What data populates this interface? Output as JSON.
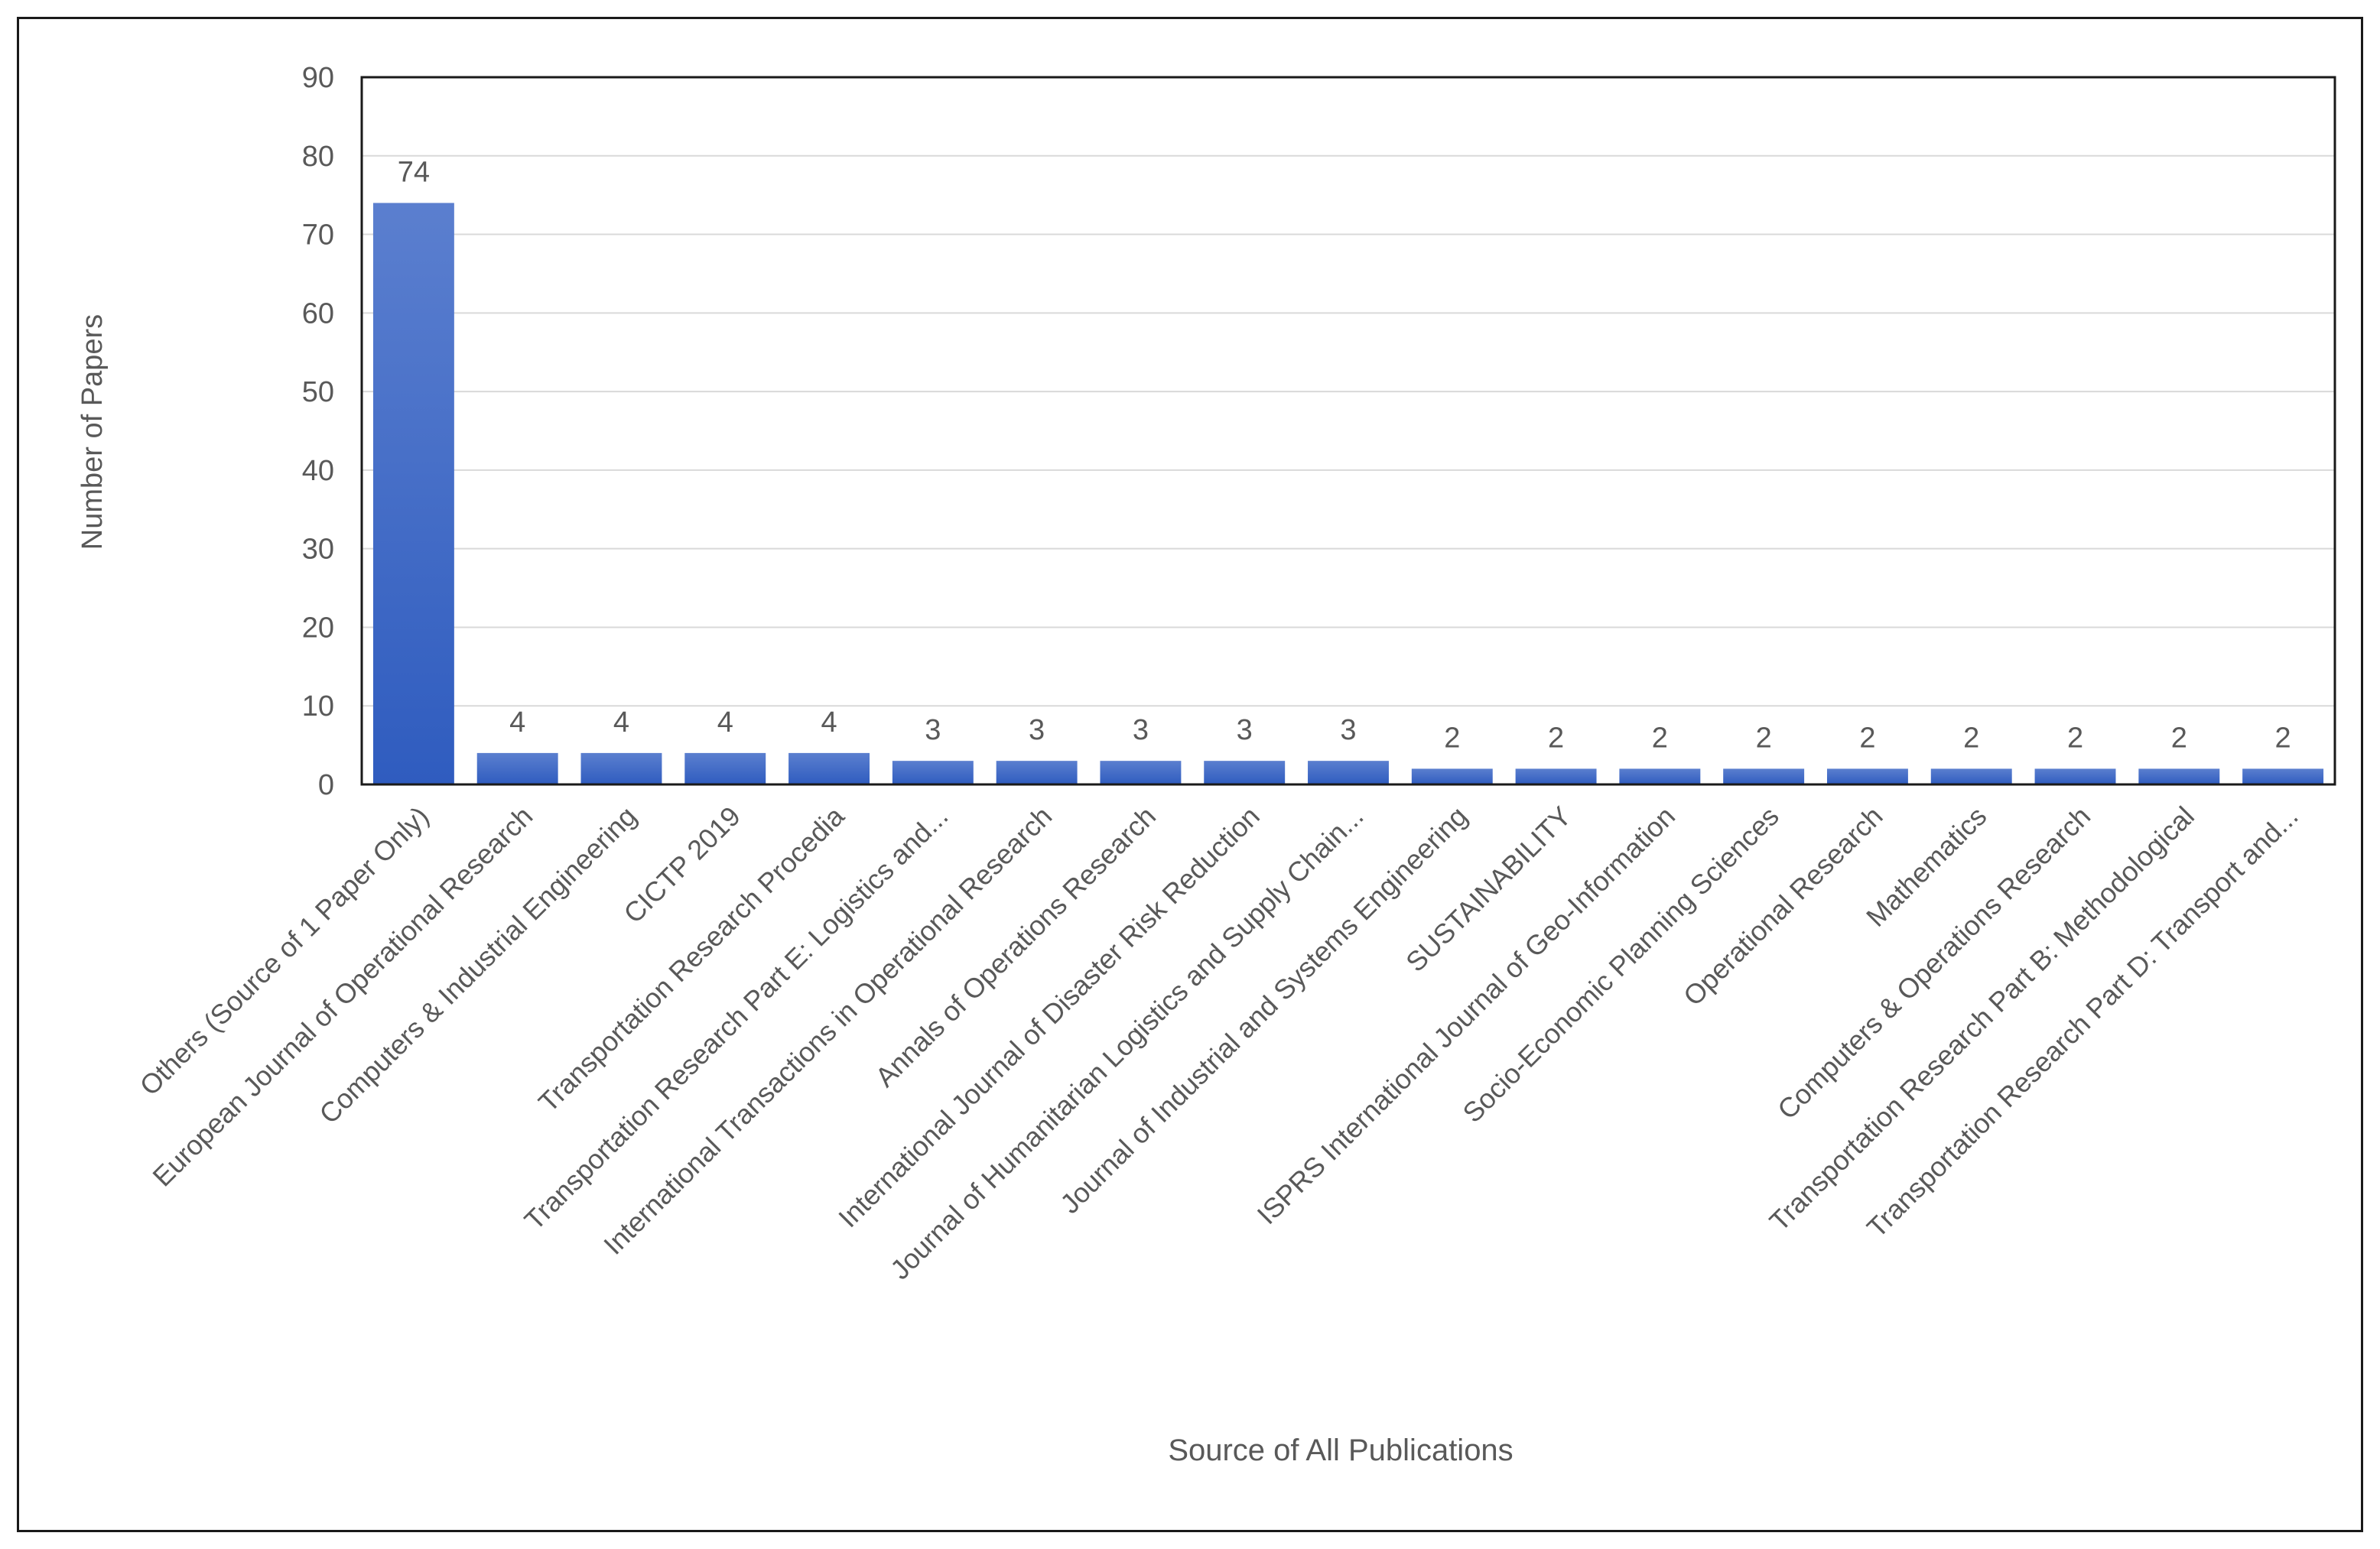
{
  "chart_data": {
    "type": "bar",
    "xlabel": "Source of All Publications",
    "ylabel": "Number of Papers",
    "ylim": [
      0,
      90
    ],
    "yticks": [
      0,
      10,
      20,
      30,
      40,
      50,
      60,
      70,
      80,
      90
    ],
    "grid": true,
    "legend": "none",
    "categories": [
      "Others (Source of 1 Paper Only)",
      "European Journal of Operational Research",
      "Computers & Industrial Engineering",
      "CICTP 2019",
      "Transportation Research Procedia",
      "Transportation Research Part E: Logistics and...",
      "International Transactions in Operational Research",
      "Annals of Operations Research",
      "International Journal of Disaster Risk Reduction",
      "Journal of Humanitarian Logistics and Supply Chain...",
      "Journal of Industrial and Systems Engineering",
      "SUSTAINABILITY",
      "ISPRS International Journal of Geo-Information",
      "Socio-Economic Planning Sciences",
      "Operational Research",
      "Mathematics",
      "Computers & Operations Research",
      "Transportation Research Part B: Methodological",
      "Transportation Research Part D: Transport and..."
    ],
    "values": [
      74,
      4,
      4,
      4,
      4,
      3,
      3,
      3,
      3,
      3,
      2,
      2,
      2,
      2,
      2,
      2,
      2,
      2,
      2
    ],
    "data_labels": [
      "74",
      "4",
      "4",
      "4",
      "4",
      "3",
      "3",
      "3",
      "3",
      "3",
      "2",
      "2",
      "2",
      "2",
      "2",
      "2",
      "2",
      "2",
      "2"
    ],
    "colors": {
      "bar_top": "#5b7fcf",
      "bar_bottom": "#2f5cbf",
      "grid": "#d9d9d9",
      "axis": "#1a1a1a",
      "text": "#595959"
    }
  }
}
